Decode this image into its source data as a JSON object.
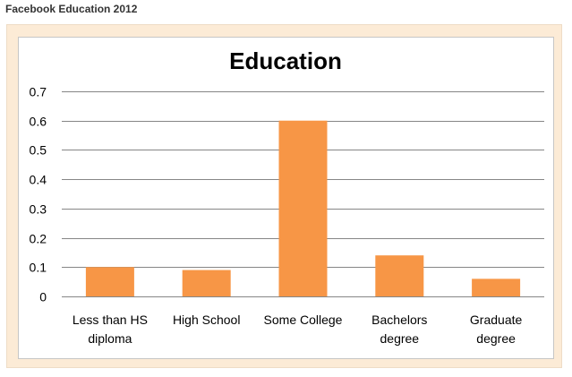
{
  "page": {
    "caption": "Facebook Education 2012"
  },
  "chart_data": {
    "type": "bar",
    "title": "Education",
    "categories": [
      [
        "Less than HS",
        "diploma"
      ],
      [
        "High School"
      ],
      [
        "Some College"
      ],
      [
        "Bachelors",
        "degree"
      ],
      [
        "Graduate",
        "degree"
      ]
    ],
    "values": [
      0.1,
      0.09,
      0.6,
      0.14,
      0.06
    ],
    "ylim": [
      0,
      0.7
    ],
    "yticks": [
      0,
      0.1,
      0.2,
      0.3,
      0.4,
      0.5,
      0.6,
      0.7
    ],
    "ytick_labels": [
      "0",
      "0.1",
      "0.2",
      "0.3",
      "0.4",
      "0.5",
      "0.6",
      "0.7"
    ],
    "grid": true,
    "legend": "none",
    "bar_color": "#f79646",
    "grid_color": "#868686"
  }
}
